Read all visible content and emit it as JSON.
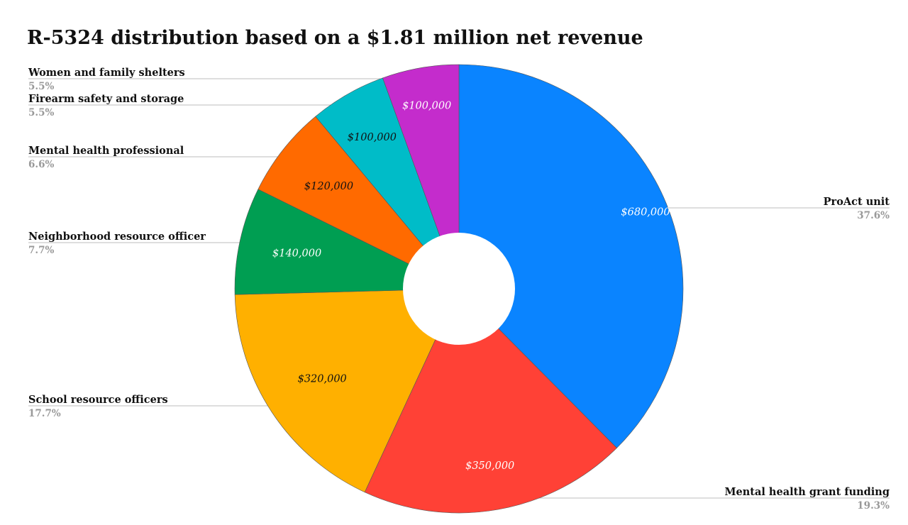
{
  "chart_data": {
    "type": "pie",
    "title": "R-5324 distribution based on a $1.81 million net revenue",
    "hole": true,
    "slices": [
      {
        "name": "ProAct unit",
        "value": 680000,
        "value_label": "$680,000",
        "percent_label": "37.6%",
        "color": "#0a84ff",
        "value_text_color": "#ffffff"
      },
      {
        "name": "Mental health grant funding",
        "value": 350000,
        "value_label": "$350,000",
        "percent_label": "19.3%",
        "color": "#ff4136",
        "value_text_color": "#ffffff"
      },
      {
        "name": "School resource officers",
        "value": 320000,
        "value_label": "$320,000",
        "percent_label": "17.7%",
        "color": "#ffb000",
        "value_text_color": "#111111"
      },
      {
        "name": "Neighborhood resource officer",
        "value": 140000,
        "value_label": "$140,000",
        "percent_label": "7.7%",
        "color": "#009e52",
        "value_text_color": "#ffffff"
      },
      {
        "name": "Mental health professional",
        "value": 120000,
        "value_label": "$120,000",
        "percent_label": "6.6%",
        "color": "#ff6a00",
        "value_text_color": "#111111"
      },
      {
        "name": "Firearm safety and storage",
        "value": 100000,
        "value_label": "$100,000",
        "percent_label": "5.5%",
        "color": "#00bcc8",
        "value_text_color": "#111111"
      },
      {
        "name": "Women and family shelters",
        "value": 100000,
        "value_label": "$100,000",
        "percent_label": "5.5%",
        "color": "#c42ccc",
        "value_text_color": "#ffffff"
      }
    ]
  }
}
